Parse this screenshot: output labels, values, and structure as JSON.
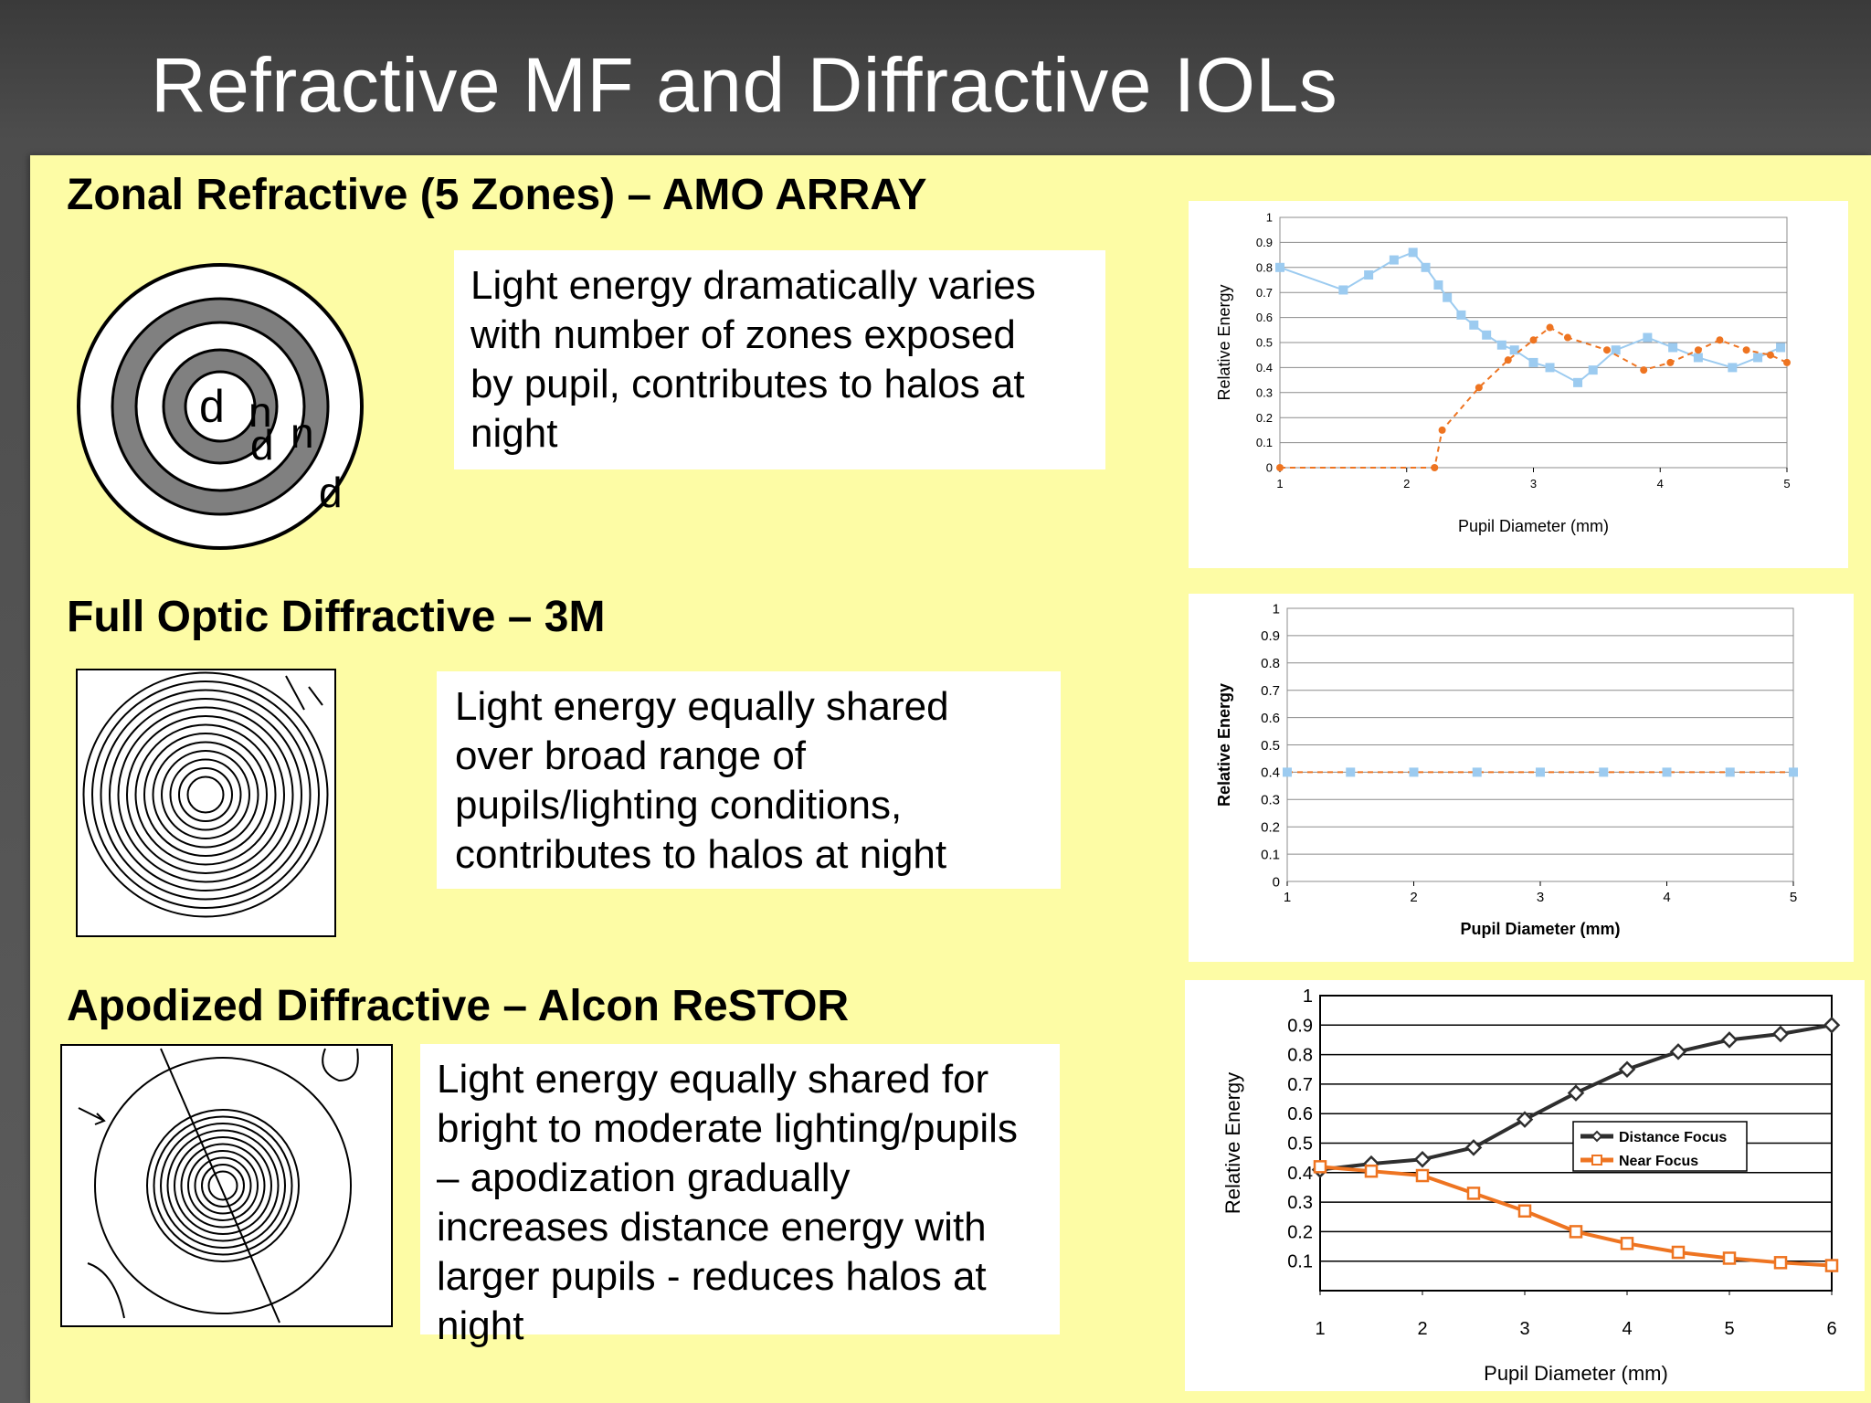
{
  "slide": {
    "title": "Refractive MF and Diffractive IOLs",
    "colors": {
      "panel": "#fdfca5",
      "background": "#4a4a4a",
      "orange": "#ee7421",
      "blue": "#9ccbf0"
    }
  },
  "sections": [
    {
      "heading": "Zonal Refractive (5 Zones) – AMO ARRAY",
      "description": "Light energy dramatically varies\nwith number of zones exposed\nby pupil, contributes to halos at\nnight",
      "diagram_labels": [
        "d",
        "n",
        "d",
        "n",
        "d"
      ]
    },
    {
      "heading": "Full Optic Diffractive – 3M",
      "description": "Light energy equally shared\nover broad range of\npupils/lighting conditions,\ncontributes to halos at night"
    },
    {
      "heading": "Apodized Diffractive – Alcon ReSTOR",
      "description": "Light energy equally shared for\nbright to moderate lighting/pupils\n– apodization gradually\nincreases distance energy with\nlarger pupils - reduces halos at\nnight"
    }
  ],
  "chart_data": [
    {
      "type": "line",
      "xlabel": "Pupil Diameter (mm)",
      "ylabel": "Relative Energy",
      "xlim": [
        1,
        5
      ],
      "ylim": [
        0,
        1
      ],
      "xticks": [
        "1",
        "2",
        "3",
        "4",
        "5"
      ],
      "yticks": [
        "0",
        "0.1",
        "0.2",
        "0.3",
        "0.4",
        "0.5",
        "0.6",
        "0.7",
        "0.8",
        "0.9",
        "1"
      ],
      "grid": true,
      "series": [
        {
          "color": "#9ccbf0",
          "marker": "square",
          "line": "solid",
          "points": [
            [
              1,
              0.8
            ],
            [
              1.5,
              0.71
            ],
            [
              1.7,
              0.77
            ],
            [
              1.9,
              0.83
            ],
            [
              2.05,
              0.86
            ],
            [
              2.15,
              0.8
            ],
            [
              2.25,
              0.73
            ],
            [
              2.32,
              0.68
            ],
            [
              2.43,
              0.61
            ],
            [
              2.53,
              0.57
            ],
            [
              2.63,
              0.53
            ],
            [
              2.75,
              0.49
            ],
            [
              2.85,
              0.47
            ],
            [
              3.0,
              0.42
            ],
            [
              3.13,
              0.4
            ],
            [
              3.35,
              0.34
            ],
            [
              3.47,
              0.39
            ],
            [
              3.65,
              0.47
            ],
            [
              3.9,
              0.52
            ],
            [
              4.1,
              0.48
            ],
            [
              4.3,
              0.44
            ],
            [
              4.57,
              0.4
            ],
            [
              4.77,
              0.44
            ],
            [
              4.95,
              0.48
            ]
          ]
        },
        {
          "color": "#ee7421",
          "marker": "circle",
          "line": "dashed",
          "points": [
            [
              1,
              0
            ],
            [
              2.22,
              0
            ],
            [
              2.28,
              0.15
            ],
            [
              2.57,
              0.32
            ],
            [
              2.8,
              0.43
            ],
            [
              3.0,
              0.51
            ],
            [
              3.13,
              0.56
            ],
            [
              3.27,
              0.52
            ],
            [
              3.58,
              0.47
            ],
            [
              3.87,
              0.39
            ],
            [
              4.08,
              0.42
            ],
            [
              4.3,
              0.47
            ],
            [
              4.47,
              0.51
            ],
            [
              4.68,
              0.47
            ],
            [
              4.87,
              0.45
            ],
            [
              5,
              0.42
            ]
          ]
        }
      ]
    },
    {
      "type": "line",
      "xlabel": "Pupil Diameter (mm)",
      "ylabel": "Relative Energy",
      "xlim": [
        1,
        5
      ],
      "ylim": [
        0,
        1
      ],
      "xticks": [
        "1",
        "2",
        "3",
        "4",
        "5"
      ],
      "yticks": [
        "0",
        "0.1",
        "0.2",
        "0.3",
        "0.4",
        "0.5",
        "0.6",
        "0.7",
        "0.8",
        "0.9",
        "1"
      ],
      "grid": true,
      "series": [
        {
          "color": "#ee7421",
          "marker": "none",
          "line": "dashed",
          "points": [
            [
              1,
              0.4
            ],
            [
              1.5,
              0.4
            ],
            [
              2,
              0.4
            ],
            [
              2.5,
              0.4
            ],
            [
              3,
              0.4
            ],
            [
              3.5,
              0.4
            ],
            [
              4,
              0.4
            ],
            [
              4.5,
              0.4
            ],
            [
              5,
              0.4
            ]
          ]
        },
        {
          "color": "#9ccbf0",
          "marker": "square",
          "line": "none",
          "points": [
            [
              1,
              0.4
            ],
            [
              1.5,
              0.4
            ],
            [
              2,
              0.4
            ],
            [
              2.5,
              0.4
            ],
            [
              3,
              0.4
            ],
            [
              3.5,
              0.4
            ],
            [
              4,
              0.4
            ],
            [
              4.5,
              0.4
            ],
            [
              5,
              0.4
            ]
          ]
        }
      ]
    },
    {
      "type": "line",
      "xlabel": "Pupil Diameter (mm)",
      "ylabel": "Relative Energy",
      "xlim": [
        1,
        6
      ],
      "ylim": [
        0,
        1
      ],
      "xticks": [
        "1",
        "2",
        "3",
        "4",
        "5",
        "6"
      ],
      "yticks": [
        "0.1",
        "0.2",
        "0.3",
        "0.4",
        "0.5",
        "0.6",
        "0.7",
        "0.8",
        "0.9",
        "1"
      ],
      "grid": true,
      "legend": "right",
      "series": [
        {
          "name": "Distance Focus",
          "color": "#2e2e2e",
          "marker": "diamond",
          "line": "solid",
          "points": [
            [
              1,
              0.41
            ],
            [
              1.5,
              0.43
            ],
            [
              2,
              0.445
            ],
            [
              2.5,
              0.485
            ],
            [
              3,
              0.58
            ],
            [
              3.5,
              0.67
            ],
            [
              4,
              0.75
            ],
            [
              4.5,
              0.81
            ],
            [
              5,
              0.85
            ],
            [
              5.5,
              0.87
            ],
            [
              6,
              0.9
            ]
          ]
        },
        {
          "name": "Near Focus",
          "color": "#ee7421",
          "marker": "square",
          "line": "solid",
          "points": [
            [
              1,
              0.42
            ],
            [
              1.5,
              0.405
            ],
            [
              2,
              0.39
            ],
            [
              2.5,
              0.33
            ],
            [
              3,
              0.27
            ],
            [
              3.5,
              0.2
            ],
            [
              4,
              0.16
            ],
            [
              4.5,
              0.13
            ],
            [
              5,
              0.11
            ],
            [
              5.5,
              0.095
            ],
            [
              6,
              0.085
            ]
          ]
        }
      ]
    }
  ]
}
